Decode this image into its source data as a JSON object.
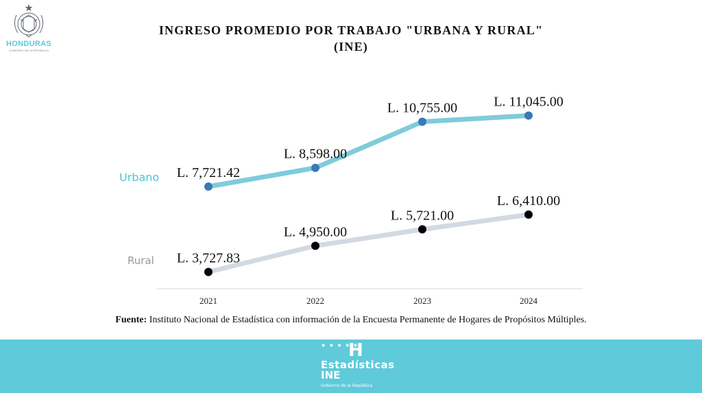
{
  "header": {
    "logo_text": "HONDURAS",
    "logo_subtext": "GOBIERNO DE LA REPÚBLICA",
    "title_line1": "INGRESO PROMEDIO POR TRABAJO \"URBANA Y RURAL\"",
    "title_line2": "(INE)"
  },
  "chart_data": {
    "type": "line",
    "title": "INGRESO PROMEDIO POR TRABAJO \"URBANA Y RURAL\" (INE)",
    "categories": [
      "2021",
      "2022",
      "2023",
      "2024"
    ],
    "series": [
      {
        "name": "Urbano",
        "values": [
          7721.42,
          8598.0,
          10755.0,
          11045.0
        ],
        "labels": [
          "L. 7,721.42",
          "L. 8,598.00",
          "L. 10,755.00",
          "L. 11,045.00"
        ],
        "line_color": "#7fcbdc",
        "marker_color": "#3a78b8",
        "name_color": "#4ec3d8"
      },
      {
        "name": "Rural",
        "values": [
          3727.83,
          4950.0,
          5721.0,
          6410.0
        ],
        "labels": [
          "L. 3,727.83",
          "L. 4,950.00",
          "L. 5,721.00",
          "L. 6,410.00"
        ],
        "line_color": "#d3d9e2",
        "marker_color": "#000000",
        "name_color": "#9a9a9a"
      }
    ],
    "grid": false,
    "legend": "inline-left"
  },
  "source": {
    "label": "Fuente:",
    "text": " Instituto Nacional de Estadística con información de la Encuesta Permanente de Hogares de Propósitos Múltiples."
  },
  "footer": {
    "logo_stars": "★ ★ ★ ★ ★",
    "logo_mark": "H",
    "logo_name": "Estadísticas",
    "logo_abbrev": "INE",
    "logo_gov": "Gobierno de la República"
  },
  "colors": {
    "footer_bg": "#5fcad9",
    "accent": "#5fc6d8"
  }
}
